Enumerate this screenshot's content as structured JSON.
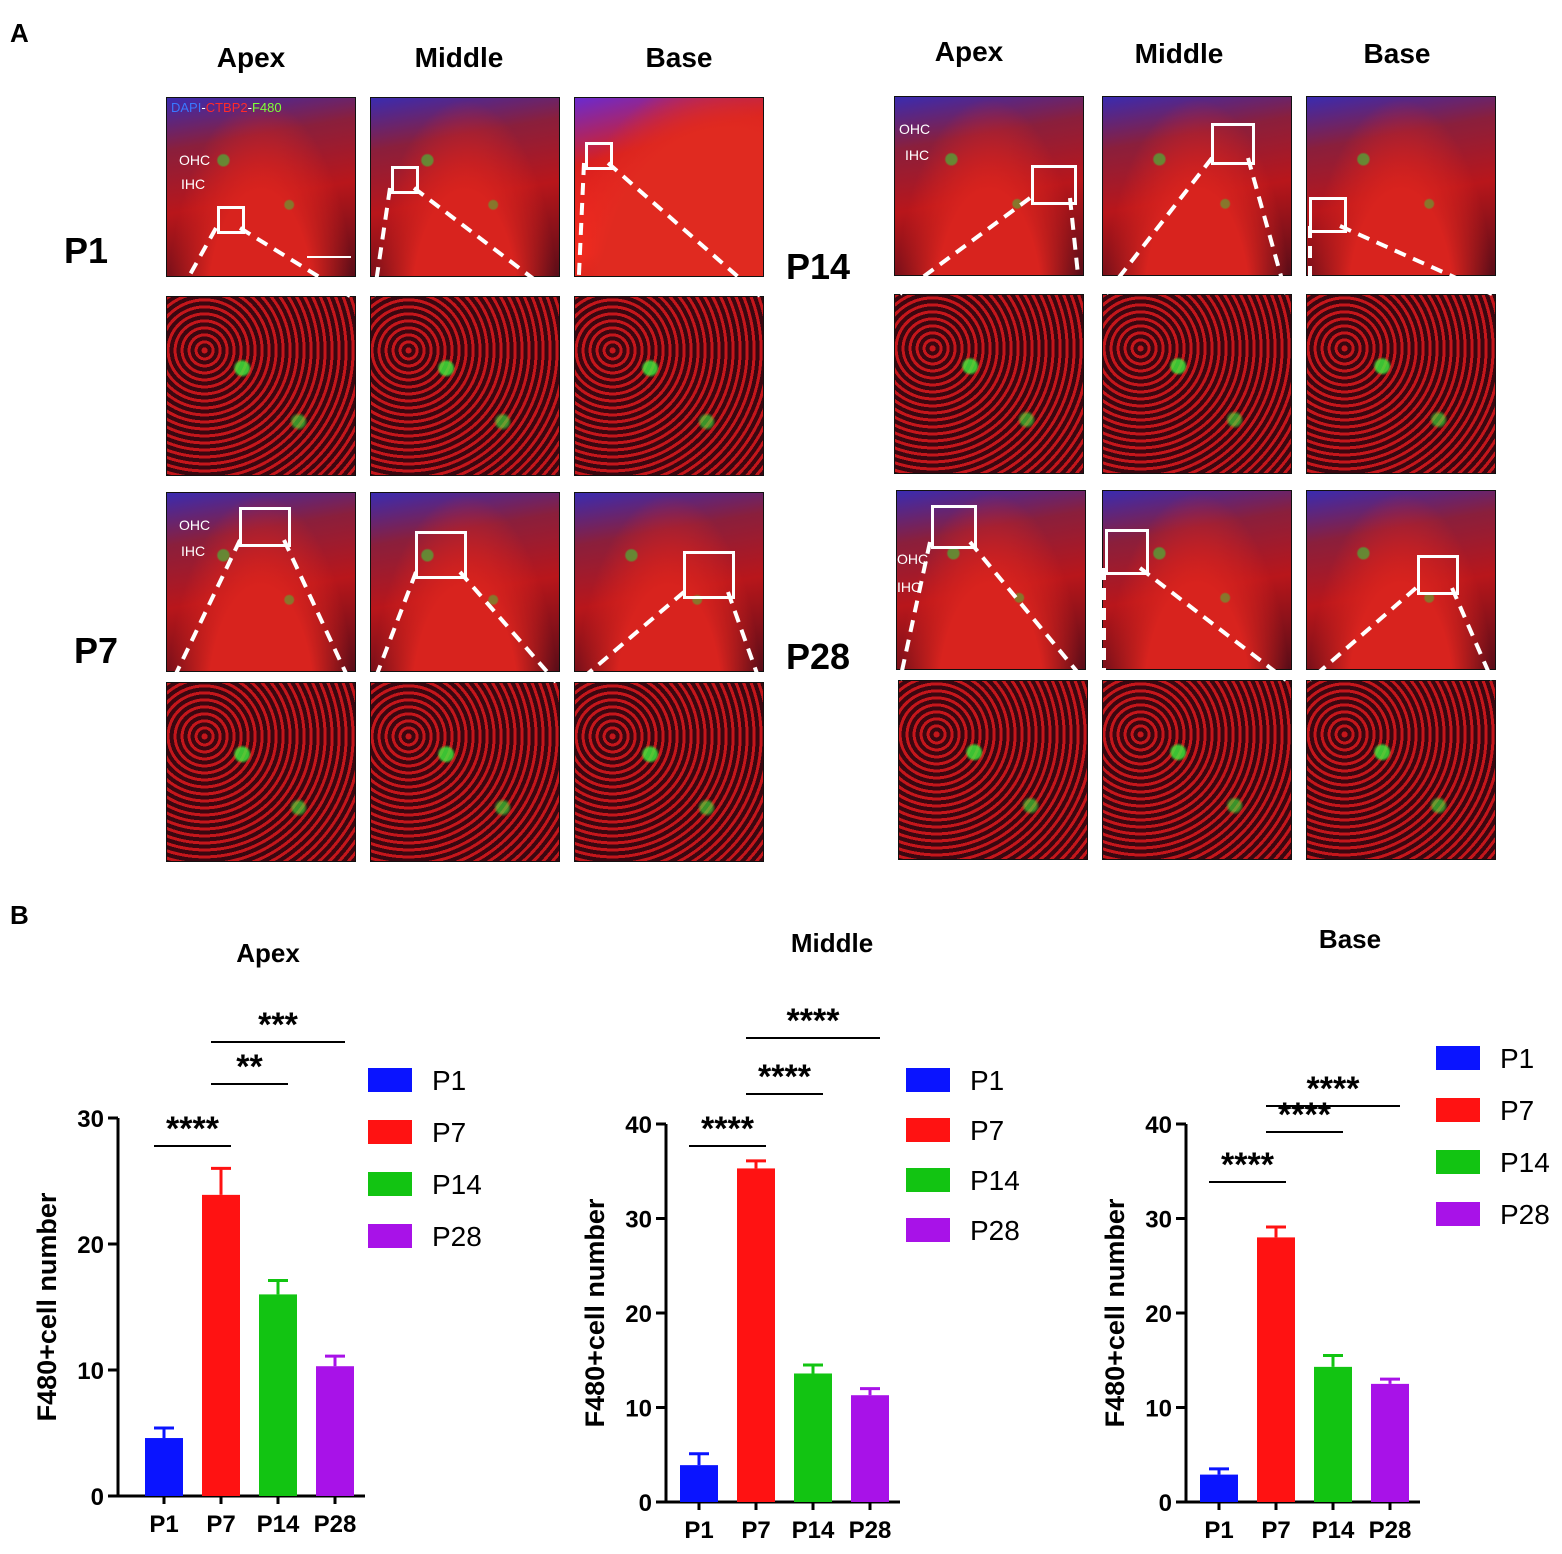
{
  "panel_a": {
    "letter": "A",
    "left_columns": [
      "Apex",
      "Middle",
      "Base"
    ],
    "right_columns": [
      "Apex",
      "Middle",
      "Base"
    ],
    "rows": [
      "P1",
      "P7",
      "P14",
      "P28"
    ],
    "stain": {
      "dapi": "DAPI",
      "sep1": "-",
      "ctbp2": "CTBP2",
      "sep2": "-",
      "f480": "F480"
    },
    "ohc": "OHC",
    "ihc": "IHC",
    "colors": {
      "dapi": "#3a78ff",
      "ctbp2": "#ff2a2a",
      "f480": "#7cff3a"
    }
  },
  "panel_b": {
    "letter": "B"
  },
  "chart_data": [
    {
      "type": "bar",
      "title": "Apex",
      "categories": [
        "P1",
        "P7",
        "P14",
        "P28"
      ],
      "values": [
        4.6,
        23.9,
        16.0,
        10.3
      ],
      "errors": [
        0.8,
        2.1,
        1.1,
        0.8
      ],
      "colors": [
        "#0a14ff",
        "#ff1212",
        "#12c412",
        "#a812e8"
      ],
      "ylabel": "F480+cell number",
      "ylim": [
        0,
        30
      ],
      "yticks": [
        0,
        10,
        20,
        30
      ],
      "legend": [
        "P1",
        "P7",
        "P14",
        "P28"
      ],
      "legend_position": "right",
      "significance": [
        {
          "from": "P1",
          "to": "P7",
          "label": "****"
        },
        {
          "from": "P7",
          "to": "P14",
          "label": "**"
        },
        {
          "from": "P7",
          "to": "P28",
          "label": "***"
        }
      ]
    },
    {
      "type": "bar",
      "title": "Middle",
      "categories": [
        "P1",
        "P7",
        "P14",
        "P28"
      ],
      "values": [
        3.9,
        35.3,
        13.6,
        11.3
      ],
      "errors": [
        1.2,
        0.8,
        0.9,
        0.7
      ],
      "colors": [
        "#0a14ff",
        "#ff1212",
        "#12c412",
        "#a812e8"
      ],
      "ylabel": "F480+cell number",
      "ylim": [
        0,
        40
      ],
      "yticks": [
        0,
        10,
        20,
        30,
        40
      ],
      "legend": [
        "P1",
        "P7",
        "P14",
        "P28"
      ],
      "legend_position": "right",
      "significance": [
        {
          "from": "P1",
          "to": "P7",
          "label": "****"
        },
        {
          "from": "P7",
          "to": "P14",
          "label": "****"
        },
        {
          "from": "P7",
          "to": "P28",
          "label": "****"
        }
      ]
    },
    {
      "type": "bar",
      "title": "Base",
      "categories": [
        "P1",
        "P7",
        "P14",
        "P28"
      ],
      "values": [
        2.9,
        28.0,
        14.3,
        12.5
      ],
      "errors": [
        0.6,
        1.1,
        1.2,
        0.5
      ],
      "colors": [
        "#0a14ff",
        "#ff1212",
        "#12c412",
        "#a812e8"
      ],
      "ylabel": "F480+cell number",
      "ylim": [
        0,
        40
      ],
      "yticks": [
        0,
        10,
        20,
        30,
        40
      ],
      "legend": [
        "P1",
        "P7",
        "P14",
        "P28"
      ],
      "legend_position": "right",
      "significance": [
        {
          "from": "P1",
          "to": "P7",
          "label": "****"
        },
        {
          "from": "P7",
          "to": "P14",
          "label": "****"
        },
        {
          "from": "P7",
          "to": "P28",
          "label": "****"
        }
      ]
    }
  ]
}
